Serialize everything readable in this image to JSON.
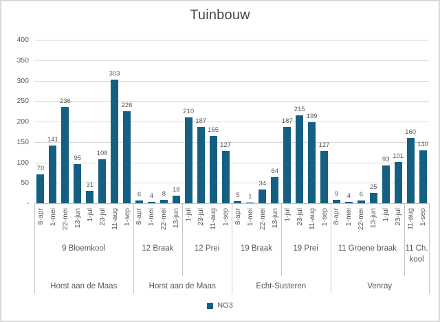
{
  "chart_data": {
    "type": "bar",
    "title": "Tuinbouw",
    "series": [
      {
        "name": "NO3",
        "color": "#156082"
      }
    ],
    "ylim": [
      0,
      400
    ],
    "y_tick_step": 50,
    "y_tick_labels": [
      "400",
      "350",
      "300",
      "250",
      "200",
      "150",
      "100",
      "50",
      "-"
    ],
    "grid": true,
    "legend_position": "bottom",
    "groups": [
      {
        "location": "Horst aan de Maas",
        "name": "9 Bloemkool",
        "categories": [
          "8-apr",
          "1-mei",
          "22-mei",
          "13-jun",
          "1-jul",
          "23-jul",
          "11-aug",
          "1-sep"
        ],
        "values": [
          70,
          141,
          236,
          95,
          31,
          108,
          303,
          226
        ]
      },
      {
        "location": "Horst aan de Maas",
        "name": "12 Braak",
        "categories": [
          "8-apr",
          "1-mei",
          "22-mei",
          "13-jun"
        ],
        "values": [
          6,
          4,
          8,
          18
        ]
      },
      {
        "location": "Horst aan de Maas",
        "name": "12 Prei",
        "categories": [
          "1-jul",
          "23-jul",
          "11-aug",
          "1-sep"
        ],
        "values": [
          210,
          187,
          165,
          127
        ]
      },
      {
        "location": "Echt-Susteren",
        "name": "19 Braak",
        "categories": [
          "8-apr",
          "1-mei",
          "22-mei",
          "13-jun"
        ],
        "values": [
          5,
          1,
          34,
          64
        ]
      },
      {
        "location": "Echt-Susteren",
        "name": "19 Prei",
        "categories": [
          "1-jul",
          "23-jul",
          "11-aug",
          "1-sep"
        ],
        "values": [
          187,
          215,
          199,
          127
        ]
      },
      {
        "location": "Venray",
        "name": "11 Groene braak",
        "categories": [
          "8-apr",
          "1-mei",
          "22-mei",
          "13-jun",
          "1-jul",
          "23-jul"
        ],
        "values": [
          9,
          4,
          6,
          25,
          93,
          101
        ]
      },
      {
        "location": "Venray",
        "name": "11 Ch. kool",
        "categories": [
          "11-aug",
          "1-sep"
        ],
        "values": [
          160,
          130
        ]
      }
    ],
    "location_spans": [
      {
        "name": "Horst aan de Maas",
        "group_indices": [
          0
        ]
      },
      {
        "name": "Horst aan de Maas",
        "group_indices": [
          1,
          2
        ]
      },
      {
        "name": "Echt-Susteren",
        "group_indices": [
          3,
          4
        ]
      },
      {
        "name": "Venray",
        "group_indices": [
          5,
          6
        ]
      }
    ]
  }
}
